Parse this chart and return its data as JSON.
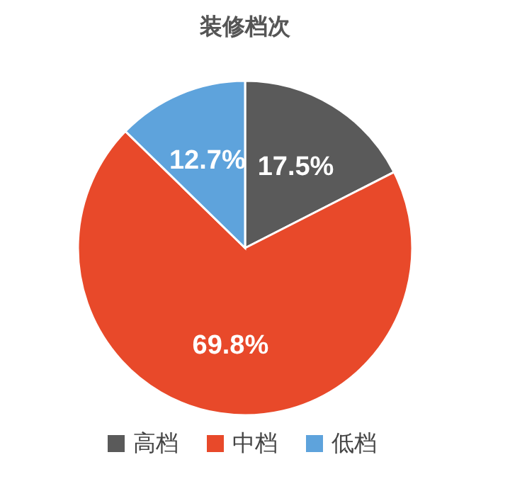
{
  "chart_data": {
    "type": "pie",
    "title": "装修档次",
    "categories": [
      "高档",
      "中档",
      "低档"
    ],
    "values": [
      17.5,
      69.8,
      12.7
    ],
    "colors": [
      "#5a5a5a",
      "#e8492a",
      "#5ea3dc"
    ],
    "value_labels": [
      "17.5%",
      "69.8%",
      "12.7%"
    ],
    "legend": "bottom"
  }
}
